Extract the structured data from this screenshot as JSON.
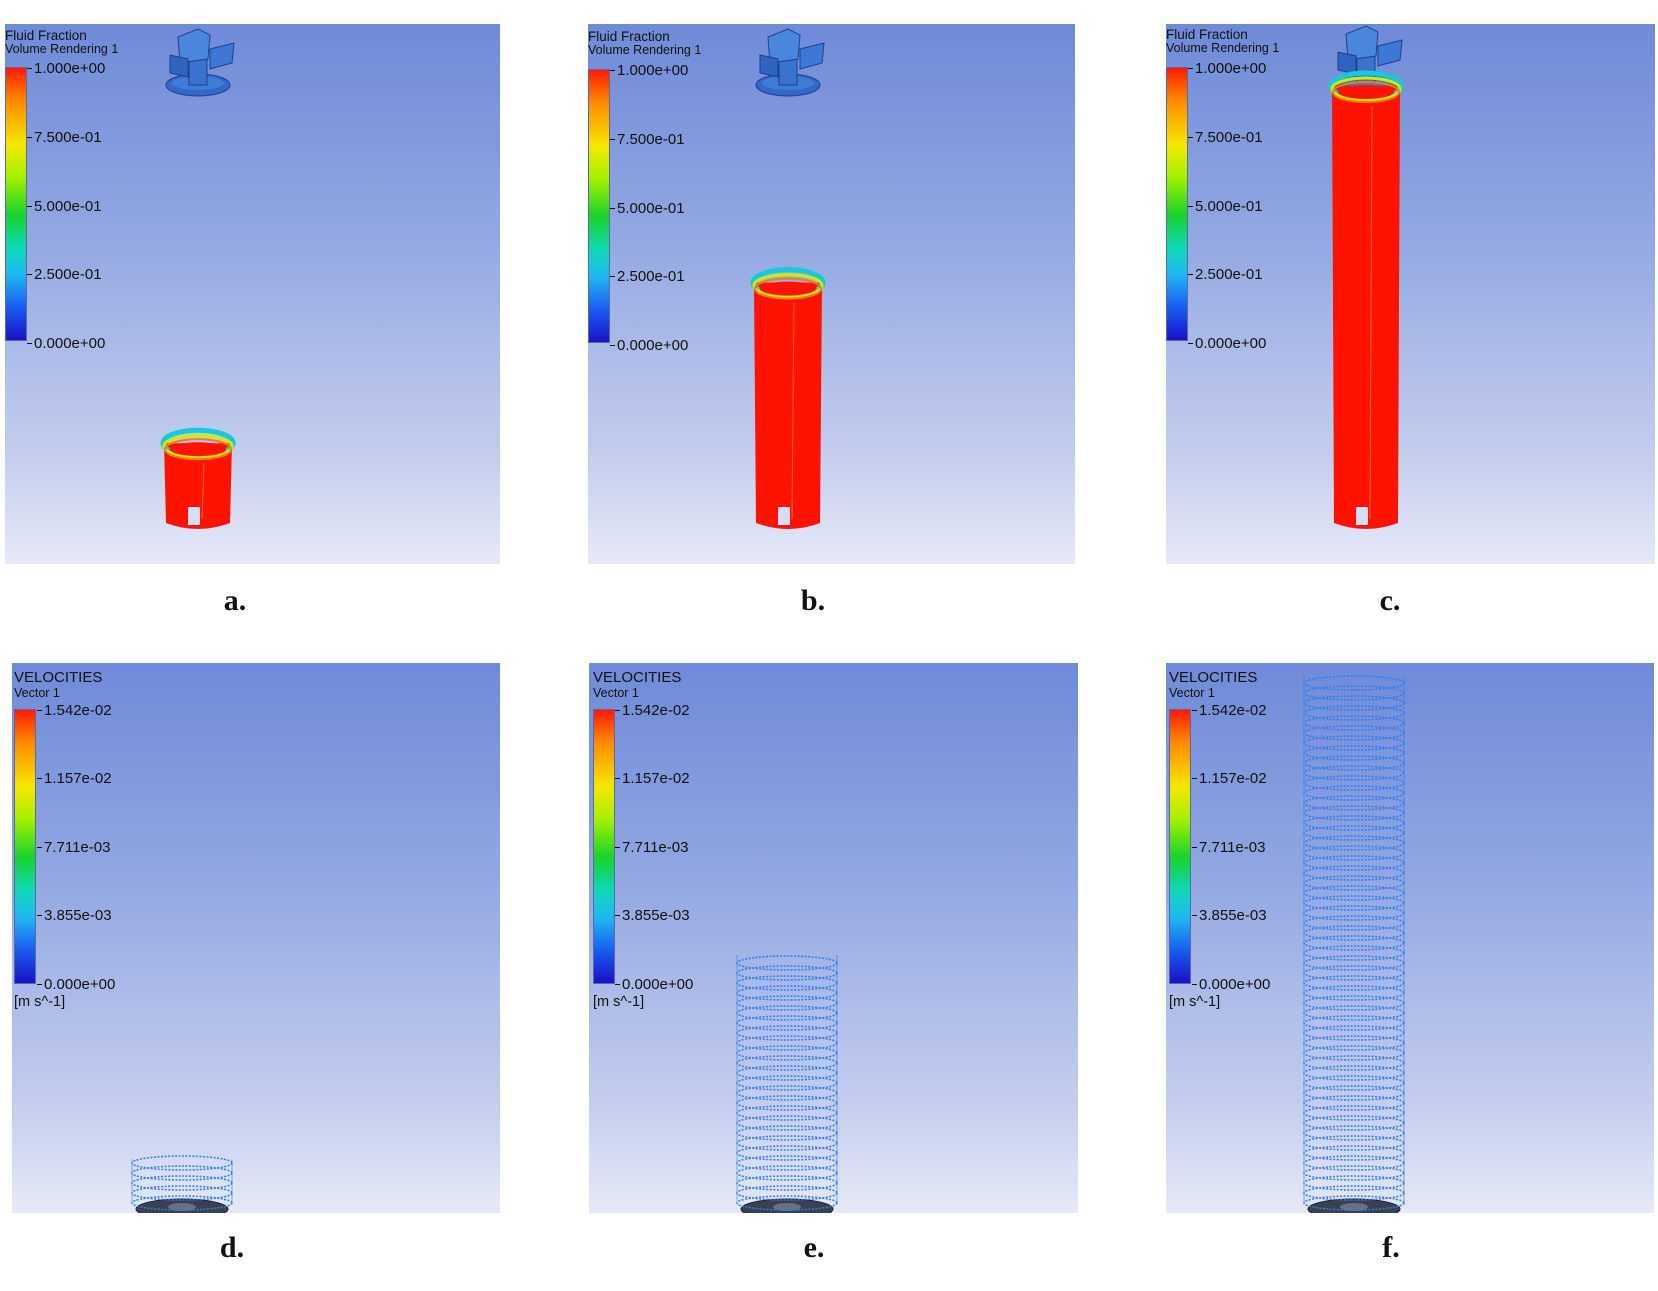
{
  "panels": [
    {
      "id": "a",
      "caption": "a.",
      "title": "Fluid Fraction",
      "subtitle": "Volume Rendering 1",
      "ticks": [
        "1.000e+00",
        "7.500e-01",
        "5.000e-01",
        "2.500e-01",
        "0.000e+00"
      ],
      "unit": "",
      "fill_level": 0.1
    },
    {
      "id": "b",
      "caption": "b.",
      "title": "Fluid Fraction",
      "subtitle": "Volume Rendering 1",
      "ticks": [
        "1.000e+00",
        "7.500e-01",
        "5.000e-01",
        "2.500e-01",
        "0.000e+00"
      ],
      "unit": "",
      "fill_level": 0.5
    },
    {
      "id": "c",
      "caption": "c.",
      "title": "Fluid Fraction",
      "subtitle": "Volume Rendering 1",
      "ticks": [
        "1.000e+00",
        "7.500e-01",
        "5.000e-01",
        "2.500e-01",
        "0.000e+00"
      ],
      "unit": "",
      "fill_level": 1.0
    },
    {
      "id": "d",
      "caption": "d.",
      "title": "VELOCITIES",
      "subtitle": "Vector 1",
      "ticks": [
        "1.542e-02",
        "1.157e-02",
        "7.711e-03",
        "3.855e-03",
        "0.000e+00"
      ],
      "unit": "[m s^-1]",
      "fill_level": 0.1
    },
    {
      "id": "e",
      "caption": "e.",
      "title": "VELOCITIES",
      "subtitle": "Vector 1",
      "ticks": [
        "1.542e-02",
        "1.157e-02",
        "7.711e-03",
        "3.855e-03",
        "0.000e+00"
      ],
      "unit": "[m s^-1]",
      "fill_level": 0.5
    },
    {
      "id": "f",
      "caption": "f.",
      "title": "VELOCITIES",
      "subtitle": "Vector 1",
      "ticks": [
        "1.542e-02",
        "1.157e-02",
        "7.711e-03",
        "3.855e-03",
        "0.000e+00"
      ],
      "unit": "[m s^-1]",
      "fill_level": 1.0
    }
  ],
  "colors": {
    "fluid": "#ff1200",
    "vector": "#2f7cf0",
    "impeller": "#3f7ed8"
  }
}
